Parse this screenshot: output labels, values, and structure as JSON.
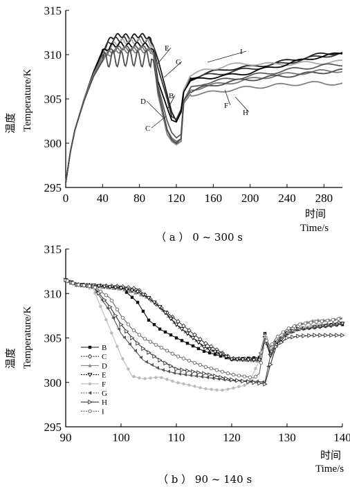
{
  "chart_data": [
    {
      "type": "line",
      "panel": "a",
      "caption": "（ a ）  0 ~ 300 s",
      "ylabel_cn": "温度",
      "ylabel": "Temperature/K",
      "xlabel_cn": "时间",
      "xlabel": "Time/s",
      "xlim": [
        0,
        300
      ],
      "ylim": [
        295,
        315
      ],
      "xticks": [
        "0",
        "40",
        "80",
        "120",
        "160",
        "200",
        "240",
        "280"
      ],
      "yticks": [
        "295",
        "300",
        "305",
        "310",
        "315"
      ],
      "grid": false,
      "labels": [
        "E",
        "G",
        "I",
        "B",
        "D",
        "C",
        "F",
        "H"
      ],
      "series": [
        {
          "name": "E",
          "color": "#1a1a1a",
          "x": [
            0,
            5,
            10,
            20,
            30,
            40,
            50,
            60,
            70,
            80,
            90,
            95,
            100,
            110,
            115,
            120,
            125,
            128,
            135,
            150,
            175,
            200,
            225,
            250,
            275,
            300
          ],
          "y": [
            295.5,
            299,
            301.5,
            305,
            308,
            310.5,
            312,
            312.2,
            312,
            312.2,
            312,
            311,
            309.5,
            305.5,
            303.5,
            302.5,
            303.5,
            306,
            307.4,
            307.8,
            308.4,
            308.6,
            309,
            309.5,
            310,
            310.3
          ]
        },
        {
          "name": "G",
          "color": "#333333",
          "x": [
            0,
            5,
            10,
            20,
            30,
            40,
            50,
            60,
            70,
            80,
            90,
            95,
            100,
            110,
            115,
            120,
            125,
            128,
            135,
            150,
            175,
            200,
            225,
            250,
            275,
            300
          ],
          "y": [
            295.5,
            299,
            301.5,
            305,
            308,
            310.5,
            311.6,
            311.8,
            311.6,
            311.8,
            311.6,
            311,
            308.5,
            305,
            303,
            302.7,
            303.8,
            306,
            307.2,
            307.6,
            308,
            308.4,
            308.8,
            309.3,
            309.8,
            310.1
          ]
        },
        {
          "name": "I",
          "color": "#aaaaaa",
          "x": [
            0,
            5,
            10,
            20,
            30,
            40,
            50,
            60,
            70,
            80,
            90,
            95,
            100,
            110,
            115,
            120,
            125,
            128,
            135,
            150,
            175,
            200,
            225,
            250,
            275,
            300
          ],
          "y": [
            295.5,
            299,
            301.5,
            305,
            308,
            310,
            311,
            311.5,
            311.5,
            311.5,
            311.4,
            310.8,
            306,
            301.5,
            300.2,
            299.8,
            300.2,
            306,
            307.6,
            308.2,
            308.8,
            309,
            308.9,
            309,
            309.1,
            309.2
          ]
        },
        {
          "name": "B",
          "color": "#000000",
          "x": [
            0,
            5,
            10,
            20,
            30,
            40,
            50,
            60,
            70,
            80,
            90,
            95,
            100,
            110,
            115,
            120,
            125,
            128,
            135,
            150,
            175,
            200,
            225,
            250,
            275,
            300
          ],
          "y": [
            295.5,
            299,
            301.5,
            305,
            308,
            310.3,
            311,
            311.2,
            311,
            311.2,
            311,
            310.5,
            307,
            304,
            302.6,
            302.4,
            303.5,
            305.8,
            307,
            307.4,
            307.6,
            308,
            308.6,
            309.2,
            309.8,
            310.1
          ]
        },
        {
          "name": "D",
          "color": "#5a5a5a",
          "x": [
            0,
            5,
            10,
            20,
            30,
            40,
            50,
            60,
            70,
            80,
            90,
            95,
            100,
            110,
            115,
            120,
            125,
            128,
            135,
            150,
            175,
            200,
            225,
            250,
            275,
            300
          ],
          "y": [
            295.5,
            299,
            301.5,
            305,
            307.8,
            309.8,
            310.5,
            310.8,
            310.7,
            310.8,
            310.7,
            310.2,
            306.5,
            302.5,
            301.2,
            300.6,
            301,
            304.8,
            306.2,
            306.8,
            307.2,
            307.6,
            308,
            308.4,
            308.7,
            308.9
          ]
        },
        {
          "name": "C",
          "color": "#777777",
          "x": [
            0,
            5,
            10,
            20,
            30,
            40,
            50,
            60,
            70,
            80,
            90,
            95,
            100,
            110,
            115,
            120,
            125,
            128,
            135,
            150,
            175,
            200,
            225,
            250,
            275,
            300
          ],
          "y": [
            295.5,
            299,
            301.5,
            305,
            307.8,
            309.8,
            310.4,
            310.7,
            310.6,
            310.7,
            310.6,
            310.2,
            306,
            301.5,
            300.6,
            300.2,
            300.5,
            304.8,
            306,
            306.4,
            306.8,
            307.2,
            307.6,
            307.9,
            308.1,
            308.2
          ]
        },
        {
          "name": "F",
          "color": "#808080",
          "x": [
            0,
            5,
            10,
            20,
            30,
            40,
            50,
            60,
            70,
            80,
            90,
            95,
            100,
            110,
            115,
            120,
            125,
            128,
            135,
            150,
            175,
            200,
            225,
            250,
            275,
            300
          ],
          "y": [
            295.5,
            299,
            301.5,
            305,
            307.6,
            309.5,
            310.2,
            310.5,
            310.4,
            310.5,
            310.4,
            310,
            305.5,
            301,
            300.2,
            299.9,
            300.2,
            304.5,
            305.5,
            305.6,
            306,
            306.3,
            306.5,
            306.7,
            306.8,
            306.7
          ]
        },
        {
          "name": "H",
          "color": "#4d4d4d",
          "x": [
            0,
            5,
            10,
            20,
            30,
            40,
            50,
            60,
            70,
            80,
            90,
            95,
            100,
            110,
            115,
            120,
            125,
            128,
            135,
            150,
            175,
            200,
            225,
            250,
            275,
            300
          ],
          "y": [
            295.5,
            299,
            301.5,
            304.8,
            307.5,
            309.3,
            309.6,
            309.5,
            309.7,
            309.5,
            309.6,
            309.4,
            306,
            301.5,
            300.4,
            300,
            300.5,
            304.8,
            305.8,
            306.3,
            306.9,
            307.2,
            307.5,
            307.7,
            308,
            308.2
          ]
        }
      ],
      "wiggle": {
        "x_start": 40,
        "x_end": 92,
        "period": 9,
        "amplitudes": [
          0.25,
          0.3,
          0.3,
          0.25,
          0.25,
          0.25,
          0.25,
          0.9
        ]
      }
    },
    {
      "type": "line",
      "panel": "b",
      "caption": "（ b ）  90 ~ 140 s",
      "ylabel_cn": "温度",
      "ylabel": "Temperature/K",
      "xlabel_cn": "时间",
      "xlabel": "Time/s",
      "xlim": [
        90,
        140
      ],
      "ylim": [
        295,
        315
      ],
      "xticks": [
        "90",
        "100",
        "110",
        "120",
        "130",
        "140"
      ],
      "yticks": [
        "295",
        "300",
        "305",
        "310",
        "315"
      ],
      "grid": false,
      "legend_position": "left",
      "series": [
        {
          "name": "B",
          "marker": "square",
          "color": "#111111",
          "x": [
            90,
            92,
            95,
            100,
            103,
            105,
            107,
            110,
            115,
            120,
            125,
            126,
            127,
            128,
            130,
            132,
            135,
            138,
            140
          ],
          "y": [
            311.5,
            311,
            310.9,
            310.7,
            309,
            307,
            306,
            305,
            303.5,
            302.6,
            302.8,
            305.5,
            303.5,
            304.5,
            305.5,
            306,
            306.2,
            306.5,
            306.5
          ]
        },
        {
          "name": "C",
          "marker": "diamond-open",
          "color": "#333333",
          "x": [
            90,
            92,
            95,
            100,
            103,
            105,
            107,
            110,
            115,
            120,
            125,
            126,
            127,
            128,
            130,
            132,
            135,
            138,
            140
          ],
          "y": [
            311.5,
            311,
            310.9,
            310.8,
            310.5,
            309.5,
            308.5,
            307,
            304.5,
            302.7,
            302.6,
            305,
            303,
            304.5,
            305.5,
            306,
            306.3,
            306.5,
            306.8
          ]
        },
        {
          "name": "D",
          "marker": "triangle-up",
          "color": "#888888",
          "x": [
            90,
            92,
            95,
            100,
            103,
            105,
            107,
            110,
            115,
            120,
            125,
            126,
            127,
            128,
            130,
            132,
            135,
            138,
            140
          ],
          "y": [
            311.5,
            311,
            310.8,
            310.5,
            310,
            309.5,
            308.5,
            306.5,
            304,
            302.6,
            302.4,
            305,
            303.5,
            304.5,
            305.8,
            306.5,
            307,
            307,
            307.3
          ]
        },
        {
          "name": "E",
          "marker": "triangle-down",
          "color": "#000000",
          "x": [
            90,
            92,
            95,
            100,
            103,
            105,
            107,
            110,
            115,
            120,
            125,
            126,
            127,
            128,
            130,
            132,
            135,
            138,
            140
          ],
          "y": [
            311.5,
            311,
            310.9,
            310.6,
            310.2,
            309.5,
            308.5,
            306.5,
            304,
            302.6,
            302.5,
            305,
            303,
            304.2,
            305.5,
            306,
            306.2,
            306.4,
            306.6
          ]
        },
        {
          "name": "F",
          "marker": "circle-filled",
          "color": "#bbbbbb",
          "x": [
            90,
            92,
            95,
            98,
            100,
            102,
            104,
            107,
            110,
            113,
            115,
            118,
            120,
            123,
            125,
            126,
            127,
            128,
            130,
            132,
            135,
            138,
            140
          ],
          "y": [
            311.5,
            311,
            310.5,
            306,
            303,
            300.7,
            300.4,
            300.6,
            300,
            299.6,
            299.3,
            299.1,
            299.3,
            299.8,
            302.5,
            305.5,
            303.8,
            304.5,
            305.5,
            306,
            306.5,
            307,
            307.3
          ]
        },
        {
          "name": "G",
          "marker": "triangle-left",
          "color": "#555555",
          "x": [
            90,
            92,
            95,
            98,
            100,
            102,
            104,
            107,
            110,
            115,
            120,
            125,
            126,
            127,
            128,
            130,
            132,
            135,
            138,
            140
          ],
          "y": [
            311.5,
            311,
            310.7,
            308,
            305.5,
            304,
            302.5,
            301.5,
            301,
            300.6,
            300.2,
            300.1,
            300,
            303,
            304.4,
            305.5,
            306,
            306.2,
            306.4,
            306.6
          ]
        },
        {
          "name": "H",
          "marker": "triangle-right",
          "color": "#333333",
          "x": [
            90,
            92,
            95,
            98,
            100,
            102,
            104,
            107,
            110,
            115,
            120,
            125,
            126,
            127,
            128,
            130,
            132,
            135,
            138,
            140
          ],
          "y": [
            311.5,
            311,
            310.8,
            308.5,
            306.5,
            305,
            303.8,
            302.5,
            301.5,
            301,
            300.3,
            299.9,
            299.8,
            302,
            304,
            305,
            305.2,
            305.3,
            305.3,
            305.3
          ]
        },
        {
          "name": "I",
          "marker": "circle-open",
          "color": "#666666",
          "x": [
            90,
            92,
            95,
            98,
            100,
            102,
            104,
            107,
            110,
            115,
            120,
            124,
            125,
            126,
            127,
            128,
            130,
            132,
            135,
            138,
            140
          ],
          "y": [
            311.5,
            311,
            310.8,
            309.5,
            307.5,
            306,
            305,
            304,
            303,
            301.8,
            300.9,
            300.5,
            301,
            305,
            304,
            305,
            306,
            306.5,
            306.8,
            307,
            307.2
          ]
        }
      ]
    }
  ]
}
